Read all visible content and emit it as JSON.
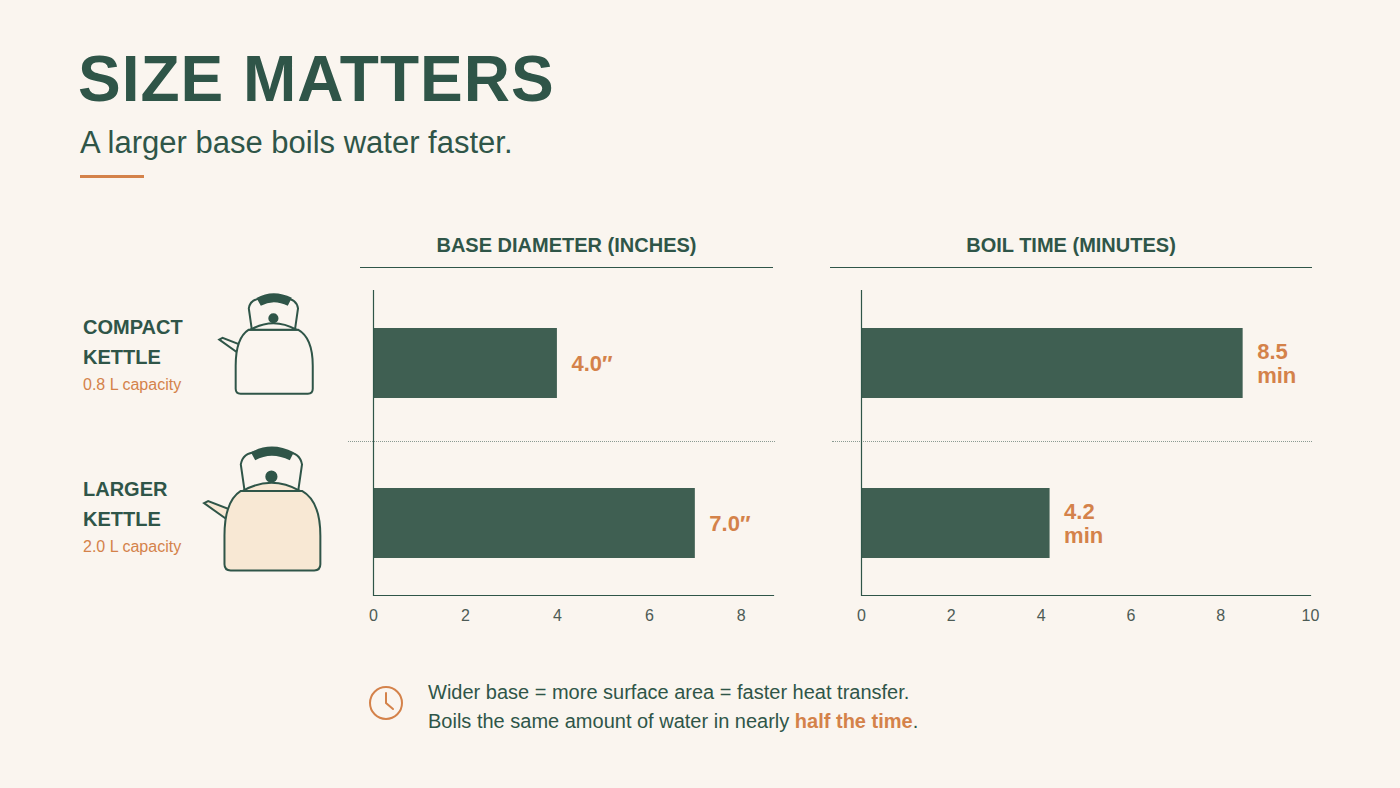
{
  "title": "SIZE MATTERS",
  "subtitle": "A larger base boils water faster.",
  "row_notes": [
    "0.8 L capacity",
    "2.0 L capacity"
  ],
  "caption": [
    {
      "text": "Wider base = more surface area = faster heat transfer."
    },
    {
      "text": "Boils the same amount of water in nearly ",
      "emphasis": "half the time",
      "after": "."
    }
  ],
  "chart_data": [
    {
      "type": "bar",
      "orientation": "horizontal",
      "title": "BASE DIAMETER (INCHES)",
      "categories": [
        "COMPACT KETTLE",
        "LARGER KETTLE"
      ],
      "values": [
        4.0,
        7.0
      ],
      "value_labels": [
        "4.0″",
        "7.0″"
      ],
      "color": "#3f5f52",
      "xlim": [
        0,
        8.7
      ],
      "xticks": [
        0,
        2,
        4,
        6,
        8
      ],
      "grid": false,
      "data_labels": true,
      "tick_labels": "x"
    },
    {
      "type": "bar",
      "orientation": "horizontal",
      "title": "BOIL TIME (MINUTES)",
      "categories": [
        "COMPACT KETTLE",
        "LARGER KETTLE"
      ],
      "values": [
        8.5,
        4.2
      ],
      "value_labels": [
        "8.5 min",
        "4.2 min"
      ],
      "color": "#3f5f52",
      "xlim": [
        0,
        10
      ],
      "xticks": [
        0,
        2,
        4,
        6,
        8,
        10
      ],
      "grid": false,
      "data_labels": true,
      "tick_labels": "x"
    }
  ]
}
